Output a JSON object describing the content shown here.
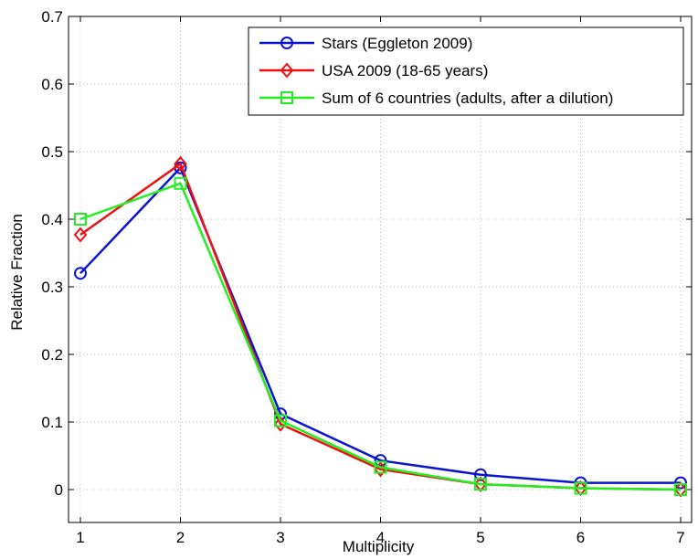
{
  "chart_data": {
    "type": "line",
    "title": "",
    "xlabel": "Multiplicity",
    "ylabel": "Relative Fraction",
    "xlim": [
      1,
      7
    ],
    "ylim": [
      0,
      0.7
    ],
    "x_ticks": [
      "1",
      "2",
      "3",
      "4",
      "5",
      "6",
      "7"
    ],
    "y_ticks": [
      "0",
      "0.1",
      "0.2",
      "0.3",
      "0.4",
      "0.5",
      "0.6",
      "0.7"
    ],
    "grid": true,
    "legend_position": "top-right",
    "series": [
      {
        "name": "Stars (Eggleton 2009)",
        "color": "#0a14d2",
        "marker": "circle",
        "x": [
          1,
          2,
          3,
          4,
          5,
          6,
          7
        ],
        "y": [
          0.32,
          0.476,
          0.112,
          0.043,
          0.022,
          0.01,
          0.01
        ]
      },
      {
        "name": "USA 2009 (18-65 years)",
        "color": "#ee1111",
        "marker": "diamond",
        "x": [
          1,
          2,
          3,
          4,
          5,
          6,
          7
        ],
        "y": [
          0.377,
          0.482,
          0.097,
          0.03,
          0.008,
          0.002,
          0.0
        ]
      },
      {
        "name": "Sum of 6 countries (adults, after a dilution)",
        "color": "#22ee22",
        "marker": "square",
        "x": [
          1,
          2,
          3,
          4,
          5,
          6,
          7
        ],
        "y": [
          0.4,
          0.453,
          0.102,
          0.033,
          0.008,
          0.002,
          0.0
        ]
      }
    ]
  }
}
